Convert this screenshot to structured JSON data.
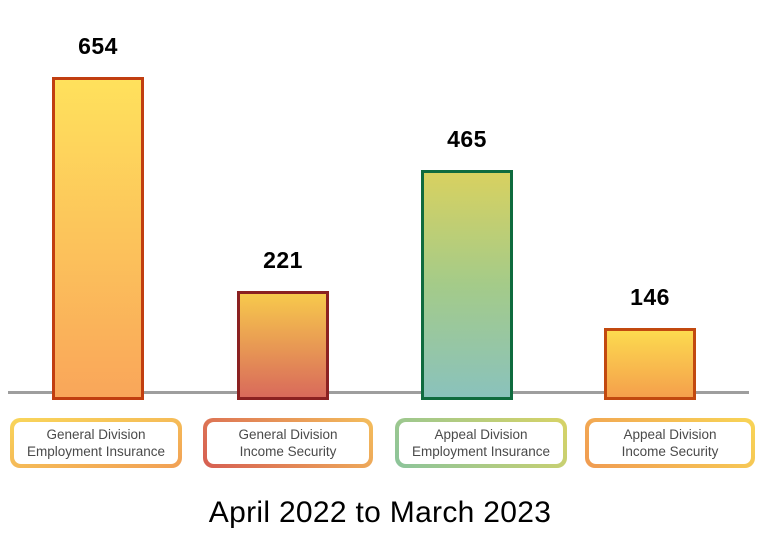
{
  "chart_data": {
    "type": "bar",
    "categories": [
      "General Division Employment Insurance",
      "General Division Income Security",
      "Appeal Division Employment Insurance",
      "Appeal Division Income Security"
    ],
    "values": [
      654,
      221,
      465,
      146
    ],
    "title": "April 2022 to March 2023",
    "grid": false,
    "legend_position": "boxes-below-axis",
    "axis_color": "#9E9E9E",
    "value_label_color": "#000000",
    "category_text_color": "#4A4A4A",
    "bar_styles": [
      {
        "gradient": [
          "#FFE15C",
          "#F9A65A"
        ],
        "border": "#C13E10",
        "box_gradient": [
          "#F9D65A",
          "#F1A055"
        ],
        "box_angle": "165deg"
      },
      {
        "gradient": [
          "#F7C94C",
          "#D96A5B"
        ],
        "border": "#8B2121",
        "box_gradient": [
          "#F4BE5C",
          "#D65E52"
        ],
        "box_angle": "225deg"
      },
      {
        "gradient": [
          "#D8D160",
          "#A4CB89",
          "#8AC2BC"
        ],
        "border": "#0F6B3E",
        "box_gradient": [
          "#D8D366",
          "#8BC49B"
        ],
        "box_angle": "225deg"
      },
      {
        "gradient": [
          "#FCDA4F",
          "#F5A04C"
        ],
        "border": "#C2490F",
        "box_gradient": [
          "#F8D556",
          "#F09B52"
        ],
        "box_angle": "225deg"
      }
    ]
  }
}
